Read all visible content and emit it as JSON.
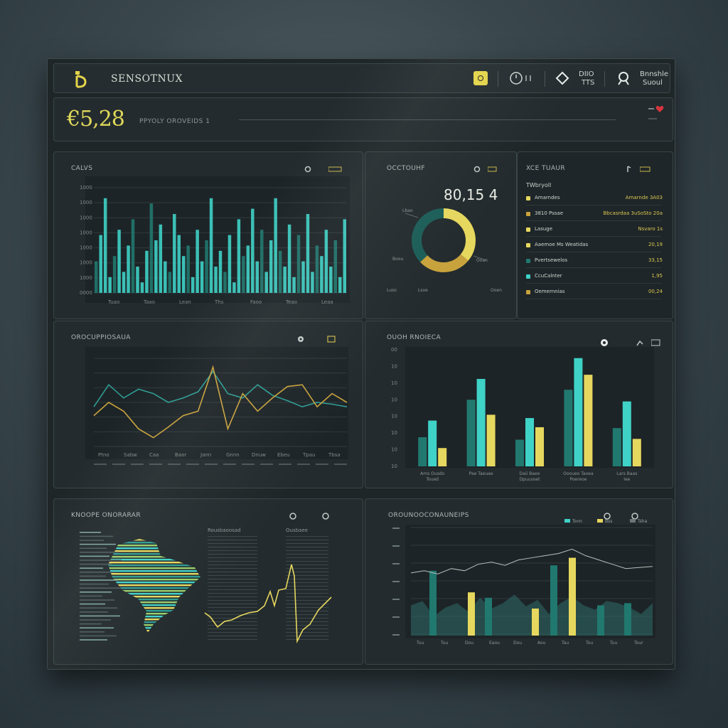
{
  "app": {
    "title": "SENSOTNUX"
  },
  "topbar": {
    "btn1_label": "DIIO",
    "btn1_sub": "TTS",
    "btn2_label": "Bnnshle",
    "btn2_sub": "Suoul"
  },
  "hero": {
    "value": "€5,28",
    "label": "PPYOLY OROVEIDS 1"
  },
  "colors": {
    "teal": "#3fd2c7",
    "dark_teal": "#21786f",
    "yellow": "#e6d75e",
    "gold": "#c8a23c",
    "panel_bg": "#232b2e"
  },
  "panels": {
    "p1": {
      "title": "CALVS",
      "y_ticks": [
        "1000",
        "1000",
        "1000",
        "1000",
        "1000",
        "1000",
        "1000",
        "0000"
      ],
      "x_ticks": [
        "Tuao",
        "Taao",
        "Lean",
        "Ths",
        "Faoo",
        "Teao",
        "Leaa"
      ],
      "bars": [
        0.3,
        0.55,
        0.9,
        0.15,
        0.35,
        0.6,
        0.2,
        0.45,
        0.7,
        0.25,
        0.1,
        0.4,
        0.85,
        0.5,
        0.65,
        0.3,
        0.2,
        0.75,
        0.55,
        0.35,
        0.45,
        0.15,
        0.6,
        0.3,
        0.5,
        0.9,
        0.25,
        0.4,
        0.2,
        0.55,
        0.1,
        0.7,
        0.35,
        0.45,
        0.8,
        0.3,
        0.6,
        0.2,
        0.5,
        0.9,
        0.4,
        0.25,
        0.65,
        0.15,
        0.55,
        0.3,
        0.75,
        0.2,
        0.45,
        0.35,
        0.6,
        0.25,
        0.5,
        0.15,
        0.7
      ]
    },
    "p2": {
      "title": "OCCTOUHF",
      "center_value": "80,15 4",
      "slices": [
        {
          "name": "yellow",
          "value": 0.36
        },
        {
          "name": "gold",
          "value": 0.27
        },
        {
          "name": "dark_teal",
          "value": 0.37
        }
      ],
      "small_labels": [
        "Lbao",
        "Boou",
        "Ooan",
        "Luso",
        "Lsoe",
        "Ooen"
      ]
    },
    "p3": {
      "title": "XCE TUAUR",
      "header": "TWbryoll",
      "rows": [
        {
          "label": "Amarndes",
          "value": "Amarnde 3A03"
        },
        {
          "label": "3810 Pssae",
          "value": "Bbcasrdaa 3uSoSto 20a"
        },
        {
          "label": "Lasuge",
          "value": "Nsvaro 1s"
        },
        {
          "label": "Aaemoe Ms Weatidas",
          "value": "20,19"
        },
        {
          "label": "Pvertsewelos",
          "value": "33,15"
        },
        {
          "label": "CcuCalnter",
          "value": "1,95"
        },
        {
          "label": "Oemernnias",
          "value": "00,24"
        }
      ]
    },
    "p4": {
      "title": "OROCUPPIOSAUA",
      "x_ticks": [
        "Ptno",
        "Sabw",
        "Caa",
        "Baor",
        "Jann",
        "Gnnn",
        "Dnuw",
        "Ebeu",
        "Tpau",
        "Tbsa"
      ],
      "series": [
        {
          "name": "teal",
          "values": [
            0.45,
            0.7,
            0.55,
            0.65,
            0.6,
            0.5,
            0.55,
            0.62,
            0.85,
            0.6,
            0.55,
            0.7,
            0.58,
            0.52,
            0.45,
            0.5,
            0.48,
            0.45
          ]
        },
        {
          "name": "gold",
          "values": [
            0.35,
            0.5,
            0.4,
            0.2,
            0.1,
            0.22,
            0.35,
            0.4,
            0.9,
            0.2,
            0.6,
            0.4,
            0.55,
            0.68,
            0.7,
            0.45,
            0.6,
            0.5
          ]
        }
      ]
    },
    "p5": {
      "title": "OUOH RNOIECA",
      "y_ticks": [
        "00",
        "10",
        "10",
        "10",
        "10",
        "10",
        "10",
        "10"
      ],
      "categories": [
        "Ams Ousdo Toued",
        "Pae Taeuae",
        "Daii Baeo Dpuusoet",
        "Oooueo Taoea Poereoe",
        "Lars Baas Iee"
      ],
      "series": [
        {
          "name": "dark_teal",
          "values": [
            3.5,
            8,
            3.2,
            9.2,
            4.6
          ]
        },
        {
          "name": "teal",
          "values": [
            5.5,
            10.5,
            5.8,
            13.0,
            7.8
          ]
        },
        {
          "name": "yellow",
          "values": [
            2.2,
            6.2,
            4.7,
            11.0,
            3.3
          ]
        }
      ],
      "ylim": [
        0,
        14
      ]
    },
    "p6": {
      "title": "KNOOPE ONORARAR",
      "columns": [
        "Rousbaoosad",
        "Ousbaee"
      ]
    },
    "p7": {
      "title": "OROUNOOCONAUNEIPS",
      "legend": [
        "Tonn",
        "Bss",
        "Tsha"
      ],
      "x_ticks": [
        "Tuu",
        "Tuu",
        "Dou",
        "Eaou",
        "Dou",
        "Aou",
        "Tau",
        "Tou",
        "Tuu",
        "Tour"
      ]
    }
  }
}
